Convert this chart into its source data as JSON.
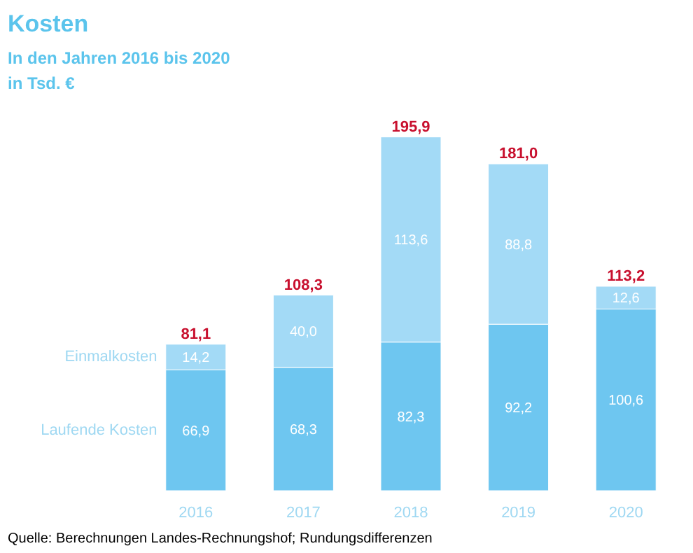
{
  "chart_data": {
    "type": "bar",
    "title": "Kosten",
    "subtitle": "In den Jahren 2016 bis 2020",
    "ylabel": "in Tsd. €",
    "categories": [
      "2016",
      "2017",
      "2018",
      "2019",
      "2020"
    ],
    "stacked": true,
    "series": [
      {
        "name": "Laufende Kosten",
        "color": "#6ec6f0",
        "values": [
          66.9,
          68.3,
          82.3,
          92.2,
          100.6
        ],
        "value_labels": [
          "66,9",
          "68,3",
          "82,3",
          "92,2",
          "100,6"
        ]
      },
      {
        "name": "Einmalkosten",
        "color": "#a3daf6",
        "values": [
          14.2,
          40.0,
          113.6,
          88.8,
          12.6
        ],
        "value_labels": [
          "14,2",
          "40,0",
          "113,6",
          "88,8",
          "12,6"
        ]
      }
    ],
    "totals": [
      "81,1",
      "108,3",
      "195,9",
      "181,0",
      "113,2"
    ],
    "annotations": [
      "Quelle: Berechnungen Landes-Rechnungshof; Rundungsdifferenzen"
    ],
    "grid": false
  }
}
